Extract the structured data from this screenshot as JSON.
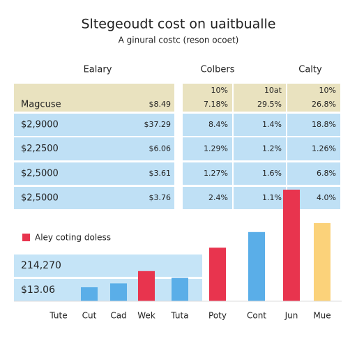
{
  "header": {
    "title": "Sltegeoudt cost on uaitbualle",
    "subtitle": "A ginural costc (reson ocoet)"
  },
  "table": {
    "columns": [
      "Ealary",
      "Colbers",
      "Calty"
    ],
    "rows": [
      [
        "Magcuse",
        "$8.49",
        [
          "10%",
          "7.18%"
        ],
        [
          "10at",
          "29.5%"
        ],
        [
          "10%",
          "26.8%"
        ]
      ],
      [
        "$2,9000",
        "$37.29",
        "8.4%",
        "1.4%",
        "18.8%"
      ],
      [
        "$2,2500",
        "$6.06",
        "1.29%",
        "1.2%",
        "1.26%"
      ],
      [
        "$2,5000",
        "$3.61",
        "1.27%",
        "1.6%",
        "6.8%"
      ],
      [
        "$2,5000",
        "$3.76",
        "2.4%",
        "1.1%",
        "4.0%"
      ]
    ]
  },
  "chart_data": {
    "type": "bar",
    "legend": "Aley coting doless",
    "legend_color": "#e8344e",
    "band_labels": [
      "214,270",
      "$13.06"
    ],
    "categories": [
      "Tute",
      "Cut",
      "Cad",
      "Wek",
      "Tuta",
      "Poty",
      "Cont",
      "Jun",
      "Mue"
    ],
    "values": [
      0,
      12.5,
      16,
      27,
      21,
      48,
      62,
      100,
      70
    ],
    "colors": [
      "#5aaee8",
      "#5aaee8",
      "#5aaee8",
      "#e8344e",
      "#5aaee8",
      "#e8344e",
      "#5aaee8",
      "#e8344e",
      "#fbd27a"
    ],
    "ylim": [
      0,
      100
    ]
  }
}
